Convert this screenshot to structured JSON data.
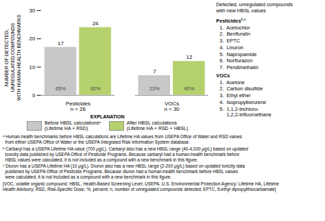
{
  "chart_data": {
    "type": "bar",
    "categories": [
      "Pesticides\nn = 26",
      "VOCs\nn = 30"
    ],
    "series": [
      {
        "name": "Before HBSL calculationsᵃ\n(Lifetime HA + RSD)",
        "color": "#c8c8c8",
        "values": [
          17,
          7
        ],
        "share_labels": [
          "65%",
          "23%"
        ]
      },
      {
        "name": "After HBSL calculations\n(Lifetime HA + RSD + HBSL)",
        "color": "#b5d16e",
        "values": [
          24,
          12
        ],
        "share_labels": [
          "92%",
          "40%"
        ]
      }
    ],
    "ylabel": "NUMBER OF DETECTED,\nUNREGULATED COMPOUNDS\nWITH HUMAN-HEALTH BENCHMARKS",
    "ylim": [
      0,
      30
    ],
    "yticks": [
      0,
      10,
      20,
      30
    ],
    "grid": false,
    "data_labels": true,
    "legend": "bottom",
    "legend_title": "EXPLANATION",
    "annotations": {
      "panel": {
        "title": "Detected, unregulated compounds\nwith new HBSL values",
        "sections": [
          {
            "heading": "Pesticides",
            "note": "b,c",
            "items": [
              "1.  Acetochlor",
              "2.  Benfluralin",
              "3.  EPTC",
              "4.  Linuron",
              "5.  Napropamide",
              "6.  Norflurazon",
              "7.  Pendimethalin"
            ]
          },
          {
            "heading": "VOCs",
            "items": [
              "1.  Acetone",
              "2.  Carbon disulfide",
              "3.  Ethyl ether",
              "4.  Isopropylbenzene",
              "5.  1,1,2-trichloro-\n     1,2,2-trifluoroethane"
            ]
          }
        ]
      },
      "footnotes": [
        "ᵃ Human-health benchmarks before HBSL calculations are Lifetime HA values from USEPA Office of Water and RSD values\n  from either USEPA Office of Water or the USEPA Integrated Risk Information System database.",
        "ᵇ Carbaryl has a USEPA Lifetime HA value (700 μg/L). Carbaryl also has a new HBSL range (40-4,000 μg/L) based on updated\n  toxicity data published by USEPA Office of Pesticide Programs. Because carbaryl had a human-health benchmark before\n  HBSL values were calculated, it is not included as a compound with a new benchmark in this figure.",
        "ᶜ Diuron has a USEPA Lifetime HA (10 μg/L). Diuron also has a new HBSL range (2-200 μg/L) based on updated toxicity data\n  published by USEPA Office of Pesticide Programs. Because diuron had a human-health benchmark before HBSL values\n  were calculated, it is not included as a compound with a new benchmark in this figure.",
        "[VOC, volatile organic compound; HBSL, Health-Based Screening Level; USEPA, U.S. Environmental Protection Agency; Lifetime HA, Lifetime\nHealth Advisory; RSD, Risk-Specific Dose; %, percent; n, number of unregulated compounds detected; EPTC, 5-ethyl dipropylthiocarbamate]"
      ]
    }
  }
}
